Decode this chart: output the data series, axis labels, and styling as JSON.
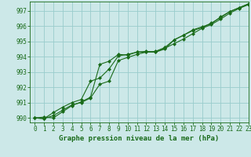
{
  "title": "Graphe pression niveau de la mer (hPa)",
  "background_color": "#cce8e8",
  "grid_color": "#99cccc",
  "line_color": "#1a6b1a",
  "xlim": [
    -0.5,
    23
  ],
  "ylim": [
    989.7,
    997.6
  ],
  "yticks": [
    990,
    991,
    992,
    993,
    994,
    995,
    996,
    997
  ],
  "xticks": [
    0,
    1,
    2,
    3,
    4,
    5,
    6,
    7,
    8,
    9,
    10,
    11,
    12,
    13,
    14,
    15,
    16,
    17,
    18,
    19,
    20,
    21,
    22,
    23
  ],
  "series": [
    [
      990.0,
      990.05,
      990.0,
      990.4,
      990.8,
      991.05,
      991.35,
      993.5,
      993.7,
      994.15,
      994.1,
      994.3,
      994.35,
      994.3,
      994.5,
      995.1,
      995.4,
      995.75,
      995.95,
      996.15,
      996.6,
      996.95,
      997.2,
      997.45
    ],
    [
      990.0,
      989.95,
      990.35,
      990.7,
      991.0,
      991.2,
      992.4,
      992.6,
      993.2,
      994.05,
      994.15,
      994.3,
      994.3,
      994.35,
      994.6,
      995.1,
      995.4,
      995.7,
      995.9,
      996.2,
      996.55,
      996.95,
      997.2,
      997.45
    ],
    [
      990.0,
      989.95,
      990.15,
      990.5,
      990.85,
      991.0,
      991.3,
      992.2,
      992.4,
      993.75,
      993.95,
      994.15,
      994.3,
      994.3,
      994.55,
      994.85,
      995.15,
      995.5,
      995.85,
      996.1,
      996.45,
      996.85,
      997.15,
      997.4
    ]
  ],
  "marker": "D",
  "markersize": 2,
  "linewidth": 0.8,
  "tick_fontsize": 5.5,
  "xlabel_fontsize": 6.5
}
